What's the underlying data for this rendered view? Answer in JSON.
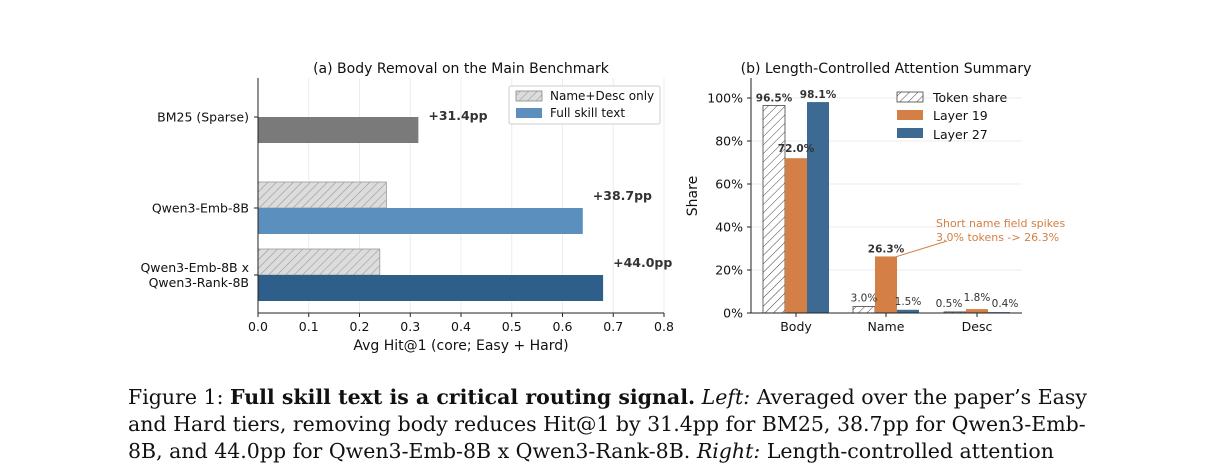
{
  "chart_data": [
    {
      "type": "bar",
      "orientation": "horizontal",
      "title": "(a) Body Removal on the Main Benchmark",
      "xlabel": "Avg Hit@1 (core; Easy + Hard)",
      "xlim": [
        0,
        0.8
      ],
      "xticks": [
        "0.0",
        "0.1",
        "0.2",
        "0.3",
        "0.4",
        "0.5",
        "0.6",
        "0.7",
        "0.8"
      ],
      "grid": "vertical",
      "legend_position": "top-right",
      "categories": [
        "BM25 (Sparse)",
        "Qwen3-Emb-8B",
        "Qwen3-Emb-8B x\nQwen3-Rank-8B"
      ],
      "series": [
        {
          "name": "Name+Desc only",
          "values": [
            null,
            0.253,
            0.24
          ],
          "color": "#d9d9d9",
          "pattern": "hatch"
        },
        {
          "name": "Full skill text",
          "values": [
            0.316,
            0.64,
            0.68
          ],
          "colors": [
            "#7a7a7a",
            "#5b8fbd",
            "#2e5f8a"
          ]
        }
      ],
      "annotations": [
        "+31.4pp",
        "+38.7pp",
        "+44.0pp"
      ]
    },
    {
      "type": "bar",
      "title": "(b) Length-Controlled Attention Summary",
      "ylabel": "Share",
      "ylim": [
        0,
        100
      ],
      "yticks": [
        "0%",
        "20%",
        "40%",
        "60%",
        "80%",
        "100%"
      ],
      "grid": "horizontal",
      "legend_position": "top-right",
      "categories": [
        "Body",
        "Name",
        "Desc"
      ],
      "series": [
        {
          "name": "Token share",
          "values": [
            96.5,
            3.0,
            0.5
          ],
          "labels": [
            "96.5%",
            "3.0%",
            "0.5%"
          ],
          "color": "#ffffff",
          "pattern": "hatch"
        },
        {
          "name": "Layer 19",
          "values": [
            72.0,
            26.3,
            1.8
          ],
          "labels": [
            "72.0%",
            "26.3%",
            "1.8%"
          ],
          "color": "#d37f45"
        },
        {
          "name": "Layer 27",
          "values": [
            98.1,
            1.5,
            0.4
          ],
          "labels": [
            "98.1%",
            "1.5%",
            "0.4%"
          ],
          "color": "#3d6a93"
        }
      ],
      "annotation": {
        "line1": "Short name field spikes",
        "line2": "3.0% tokens -> 26.3%",
        "color": "#d37f45"
      }
    }
  ],
  "caption": {
    "label": "Figure 1:",
    "bold": "Full skill text is a critical routing signal.",
    "left_label": "Left:",
    "text1": "Averaged over the paper’s Easy",
    "line2": "and Hard tiers, removing body reduces Hit@1 by 31.4pp for BM25, 38.7pp for Qwen3-Emb-",
    "line3a": "8B, and 44.0pp for Qwen3-Emb-8B x Qwen3-Rank-8B.",
    "right_label": "Right:",
    "line3b": "Length-controlled attention"
  }
}
